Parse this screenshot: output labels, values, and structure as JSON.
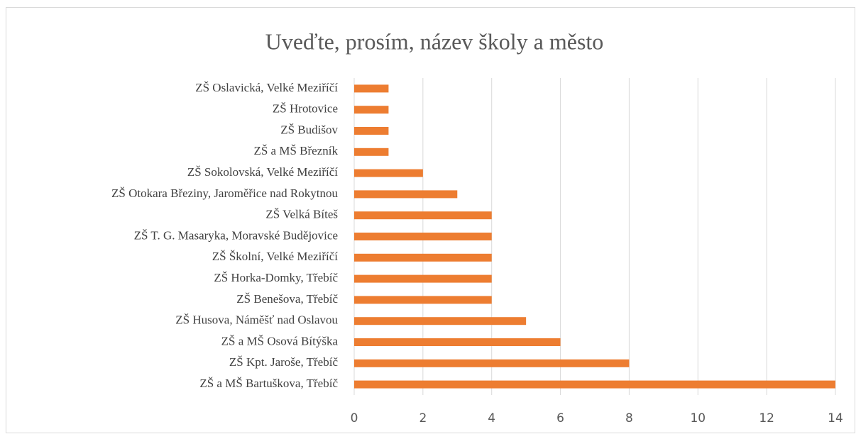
{
  "chart_data": {
    "type": "bar",
    "orientation": "horizontal",
    "title": "Uveďte, prosím, název školy a město",
    "categories": [
      "ZŠ Oslavická, Velké Meziříčí",
      "ZŠ Hrotovice",
      "ZŠ Budišov",
      "ZŠ a MŠ Březník",
      "ZŠ Sokolovská, Velké Meziříčí",
      "ZŠ Otokara Březiny, Jaroměřice nad Rokytnou",
      "ZŠ Velká Bíteš",
      "ZŠ T. G. Masaryka, Moravské Budějovice",
      "ZŠ Školní, Velké Meziříčí",
      "ZŠ Horka-Domky, Třebíč",
      "ZŠ Benešova, Třebíč",
      "ZŠ Husova, Náměšť nad Oslavou",
      "ZŠ a MŠ Osová Bítýška",
      "ZŠ Kpt. Jaroše, Třebíč",
      "ZŠ a MŠ Bartuškova, Třebíč"
    ],
    "values": [
      1,
      1,
      1,
      1,
      2,
      3,
      4,
      4,
      4,
      4,
      4,
      5,
      6,
      8,
      14
    ],
    "color": "#ed7d31",
    "xlim": [
      0,
      14
    ],
    "xticks": [
      0,
      2,
      4,
      6,
      8,
      10,
      12,
      14
    ],
    "grid": true
  }
}
